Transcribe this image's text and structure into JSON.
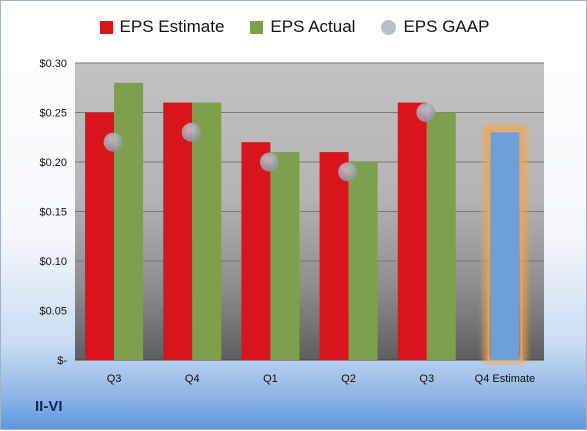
{
  "company_label": "II-VI",
  "chart_data": {
    "type": "bar",
    "categories": [
      "Q3",
      "Q4",
      "Q1",
      "Q2",
      "Q3",
      "Q4 Estimate"
    ],
    "series": [
      {
        "name": "EPS Estimate",
        "kind": "bar",
        "color": "#d9141c",
        "values": [
          0.25,
          0.26,
          0.22,
          0.21,
          0.26,
          null
        ]
      },
      {
        "name": "EPS Actual",
        "kind": "bar",
        "color": "#7ea04d",
        "values": [
          0.28,
          0.26,
          0.21,
          0.2,
          0.25,
          null
        ]
      },
      {
        "name": "EPS GAAP",
        "kind": "marker",
        "color": "#b8bfc8",
        "values": [
          0.22,
          0.23,
          0.2,
          0.19,
          0.25,
          null
        ]
      }
    ],
    "estimate_bar": {
      "category": "Q4 Estimate",
      "value": 0.23,
      "color": "#6f9fd8",
      "glow": "#f4a64a"
    },
    "ylim": [
      0,
      0.3
    ],
    "yticks": [
      0,
      0.05,
      0.1,
      0.15,
      0.2,
      0.25,
      0.3
    ],
    "ytick_labels": [
      "$-",
      "$0.05",
      "$0.10",
      "$0.15",
      "$0.20",
      "$0.25",
      "$0.30"
    ],
    "legend_position": "top",
    "grid": true
  }
}
